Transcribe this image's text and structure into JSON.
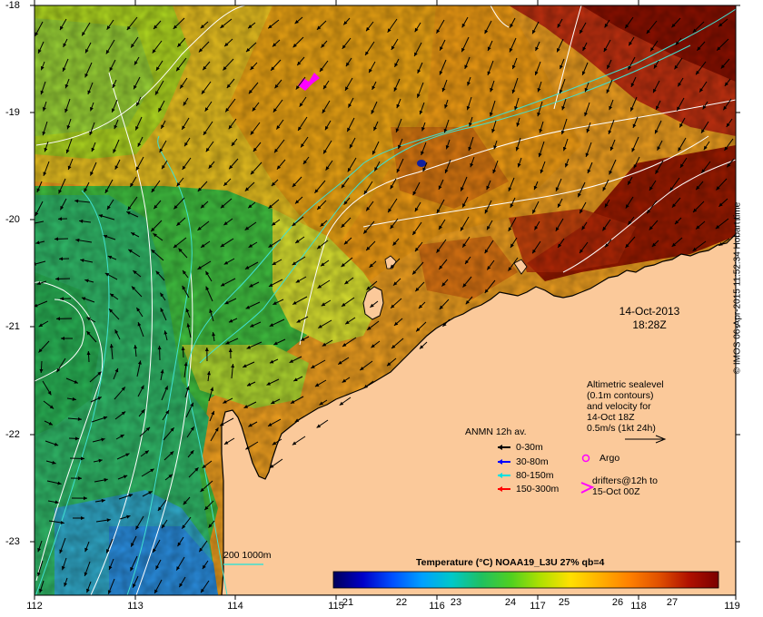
{
  "map": {
    "lon_ticks": [
      "112",
      "113",
      "114",
      "115",
      "116",
      "117",
      "118",
      "119"
    ],
    "lat_ticks": [
      "-18",
      "-19",
      "-20",
      "-21",
      "-22",
      "-23"
    ],
    "date": "14-Oct-2013",
    "time": "18:28Z",
    "colors": {
      "land": "#fbc99a",
      "coast": "#000000",
      "isobath": "#40e0d0"
    }
  },
  "altimetry": {
    "line1": "Altimetric sealevel",
    "line2": "(0.1m contours)",
    "line3": "and velocity for",
    "line4": "14-Oct 18Z",
    "line5": "0.5m/s (1kt 24h)"
  },
  "anmn": {
    "title": "ANMN 12h av.",
    "items": [
      {
        "label": "0-30m",
        "color": "#000000"
      },
      {
        "label": "30-80m",
        "color": "#0000ff"
      },
      {
        "label": "80-150m",
        "color": "#00e0e0"
      },
      {
        "label": "150-300m",
        "color": "#ff0000"
      }
    ]
  },
  "argo": {
    "label": "Argo",
    "color": "#ff00ff"
  },
  "drifters": {
    "line1": "drifters@12h to",
    "line2": "15-Oct 00Z",
    "color": "#ff00ff"
  },
  "isobaths": {
    "label": "200 1000m"
  },
  "colorbar": {
    "title": "Temperature (°C) NOAA19_L3U 27% qb=4",
    "ticks": [
      "21",
      "22",
      "23",
      "24",
      "25",
      "26",
      "27"
    ],
    "stops": [
      "#00005a",
      "#0000c8",
      "#0050ff",
      "#00a0ff",
      "#00c8c8",
      "#20c060",
      "#50d020",
      "#b0e000",
      "#ffe000",
      "#ffb000",
      "#ff8000",
      "#e05000",
      "#b01000",
      "#7a0000"
    ]
  },
  "credit": "© IMOS 06-Apr-2015 11:52:34 Hobart time"
}
